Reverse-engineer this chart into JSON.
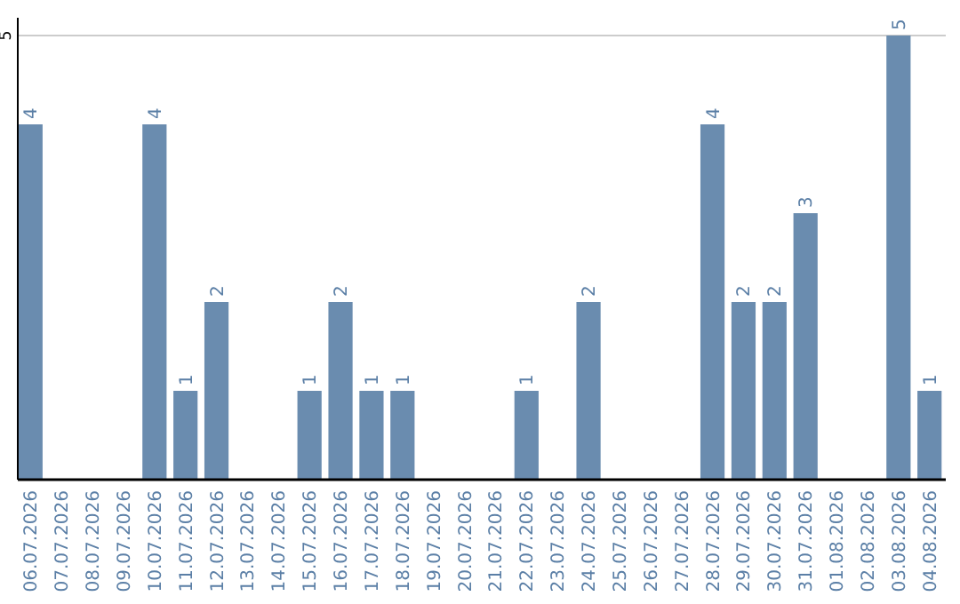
{
  "chart_data": {
    "type": "bar",
    "categories": [
      "06.07.2026",
      "07.07.2026",
      "08.07.2026",
      "09.07.2026",
      "10.07.2026",
      "11.07.2026",
      "12.07.2026",
      "13.07.2026",
      "14.07.2026",
      "15.07.2026",
      "16.07.2026",
      "17.07.2026",
      "18.07.2026",
      "19.07.2026",
      "20.07.2026",
      "21.07.2026",
      "22.07.2026",
      "23.07.2026",
      "24.07.2026",
      "25.07.2026",
      "26.07.2026",
      "27.07.2026",
      "28.07.2026",
      "29.07.2026",
      "30.07.2026",
      "31.07.2026",
      "01.08.2026",
      "02.08.2026",
      "03.08.2026",
      "04.08.2026"
    ],
    "values": [
      4,
      0,
      0,
      0,
      4,
      1,
      2,
      0,
      0,
      1,
      2,
      1,
      1,
      0,
      0,
      0,
      1,
      0,
      2,
      0,
      0,
      0,
      4,
      2,
      2,
      3,
      0,
      0,
      5,
      1
    ],
    "value_labels": [
      "4",
      null,
      null,
      null,
      "4",
      "1",
      "2",
      null,
      null,
      "1",
      "2",
      "1",
      "1",
      null,
      null,
      null,
      "1",
      null,
      "2",
      null,
      null,
      null,
      "4",
      "2",
      "2",
      "3",
      null,
      null,
      "5",
      "1"
    ],
    "color": "#6a8caf",
    "ylim": [
      0,
      5
    ],
    "yticks": [
      5
    ],
    "ref_lines": [
      {
        "axis": "y",
        "value": 5,
        "color": "#cccccc"
      }
    ]
  }
}
